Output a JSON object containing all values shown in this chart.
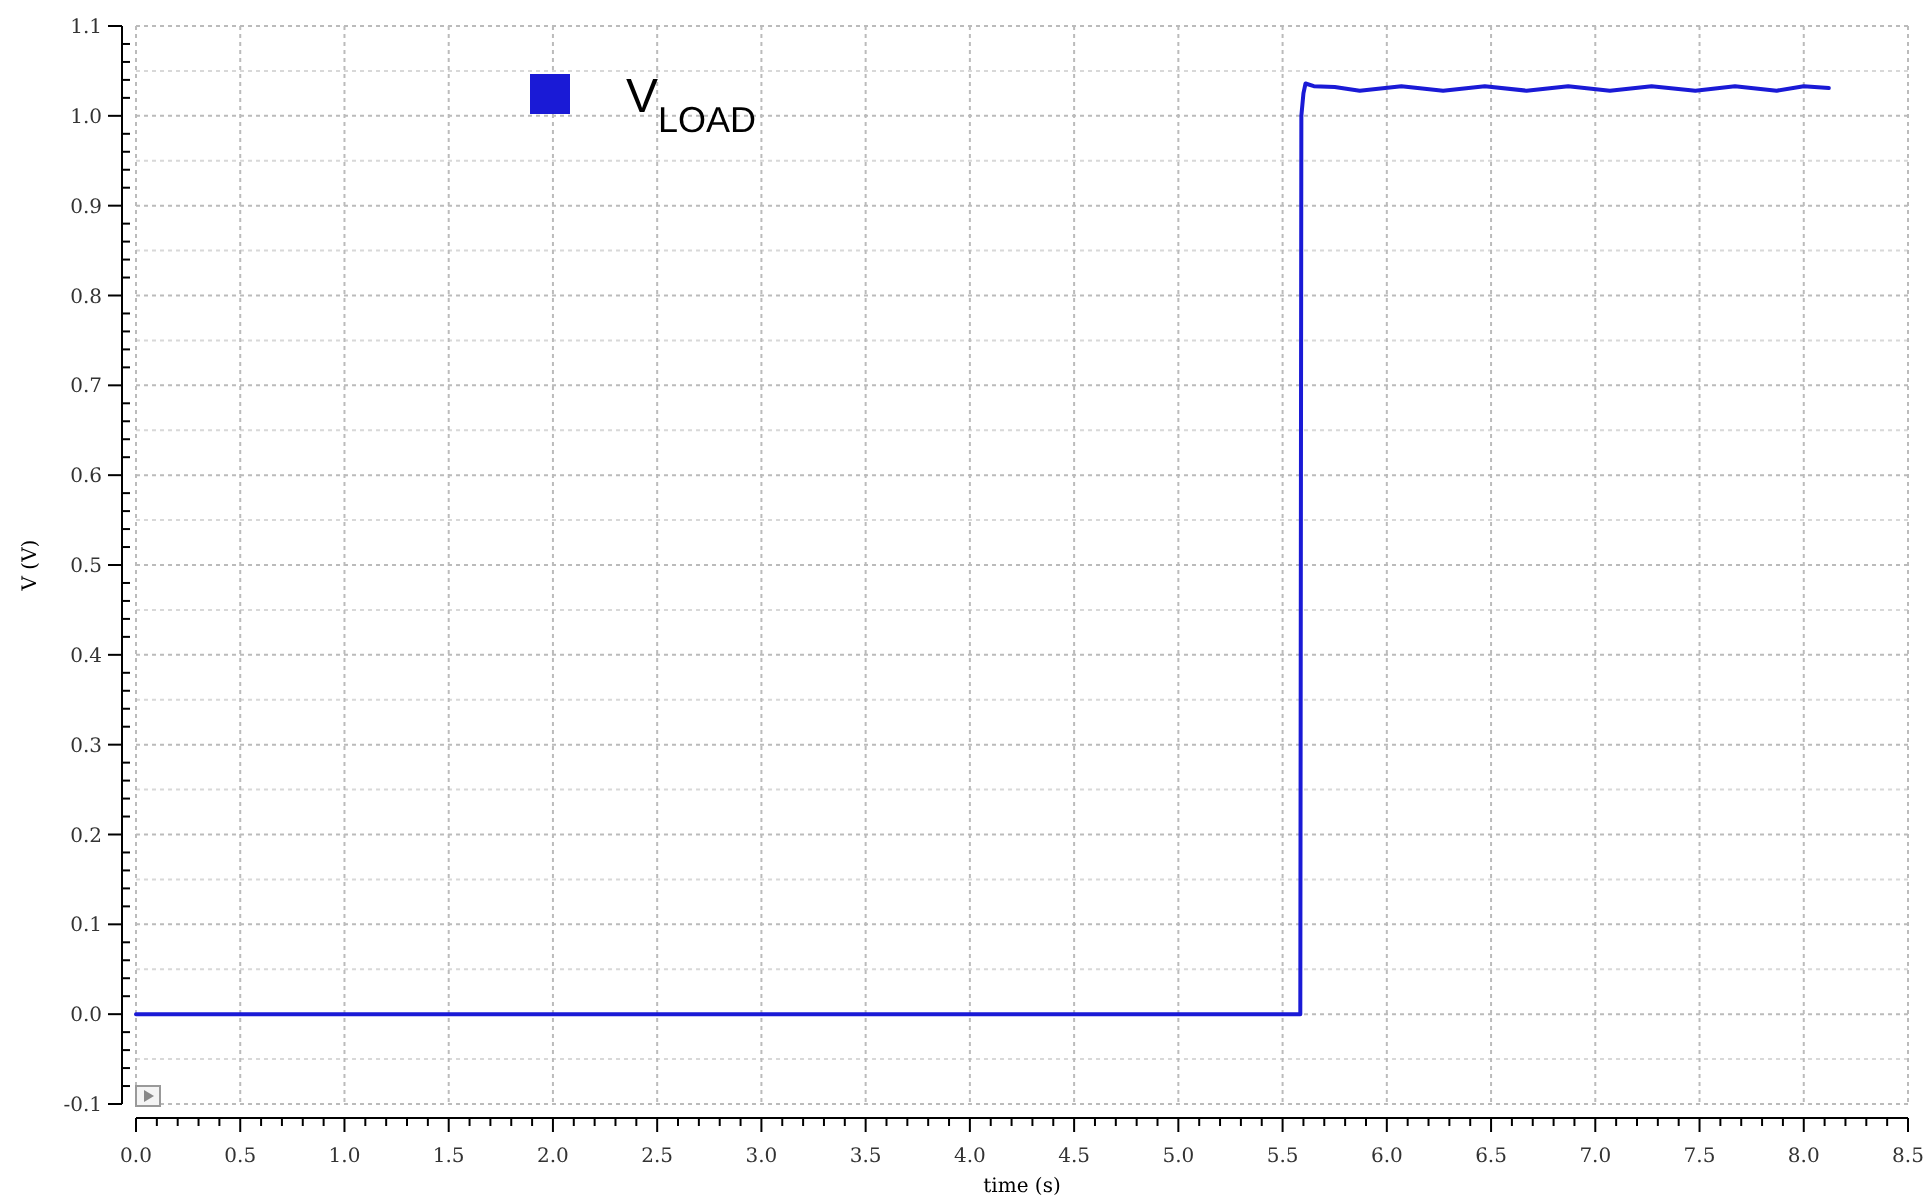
{
  "chart_data": {
    "type": "line",
    "xlabel": "time (s)",
    "ylabel": "V (V)",
    "xlim": [
      0,
      8.5
    ],
    "ylim": [
      -0.1,
      1.1
    ],
    "xticks": [
      {
        "value": 0,
        "label": "0.0"
      },
      {
        "value": 0.5,
        "label": "0.5"
      },
      {
        "value": 1,
        "label": "1.0"
      },
      {
        "value": 1.5,
        "label": "1.5"
      },
      {
        "value": 2,
        "label": "2.0"
      },
      {
        "value": 2.5,
        "label": "2.5"
      },
      {
        "value": 3,
        "label": "3.0"
      },
      {
        "value": 3.5,
        "label": "3.5"
      },
      {
        "value": 4,
        "label": "4.0"
      },
      {
        "value": 4.5,
        "label": "4.5"
      },
      {
        "value": 5,
        "label": "5.0"
      },
      {
        "value": 5.5,
        "label": "5.5"
      },
      {
        "value": 6,
        "label": "6.0"
      },
      {
        "value": 6.5,
        "label": "6.5"
      },
      {
        "value": 7,
        "label": "7.0"
      },
      {
        "value": 7.5,
        "label": "7.5"
      },
      {
        "value": 8,
        "label": "8.0"
      },
      {
        "value": 8.5,
        "label": "8.5"
      }
    ],
    "yticks": [
      -0.1,
      {
        "value": 0,
        "label": "0.0"
      },
      0.1,
      0.2,
      0.3,
      0.4,
      0.5,
      0.6,
      0.7,
      0.8,
      0.9,
      {
        "value": 1,
        "label": "1.0"
      },
      1.1
    ],
    "grid": true,
    "legend": "top left",
    "line_style": "solid",
    "series": [
      {
        "name": "V$_{LOAD}$",
        "color": "#1a1ad6",
        "x": [
          0,
          5.585,
          5.59,
          5.6,
          5.61,
          5.65,
          5.75,
          5.87,
          6.07,
          6.27,
          6.47,
          6.67,
          6.87,
          7.07,
          7.27,
          7.48,
          7.67,
          7.87,
          8.0,
          8.12
        ],
        "values": [
          0,
          0,
          1.0,
          1.025,
          1.036,
          1.033,
          1.032,
          1.028,
          1.033,
          1.028,
          1.033,
          1.028,
          1.033,
          1.028,
          1.033,
          1.028,
          1.033,
          1.028,
          1.033,
          1.031
        ]
      }
    ]
  }
}
